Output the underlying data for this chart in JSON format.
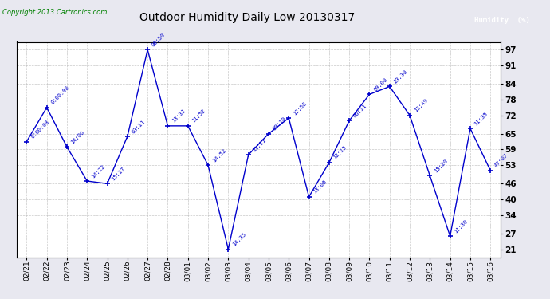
{
  "title": "Outdoor Humidity Daily Low 20130317",
  "copyright": "Copyright 2013 Cartronics.com",
  "legend_label": "Humidity  (%)",
  "x_labels": [
    "02/21",
    "02/22",
    "02/23",
    "02/24",
    "02/25",
    "02/26",
    "02/27",
    "02/28",
    "03/01",
    "03/02",
    "03/03",
    "03/04",
    "03/05",
    "03/06",
    "03/07",
    "03/08",
    "03/09",
    "03/10",
    "03/11",
    "03/12",
    "03/13",
    "03/14",
    "03/15",
    "03/16"
  ],
  "y_values": [
    62,
    75,
    60,
    47,
    46,
    64,
    97,
    68,
    68,
    53,
    21,
    57,
    65,
    71,
    41,
    54,
    70,
    80,
    83,
    72,
    49,
    26,
    67,
    51
  ],
  "time_labels": [
    "0:00:08",
    "0:00:00",
    "14:06",
    "14:22",
    "15:17",
    "63:11",
    "06:50",
    "13:31",
    "21:52",
    "14:52",
    "14:35",
    "11:11",
    "80:10",
    "12:58",
    "13:06",
    "12:15",
    "06:11",
    "00:00",
    "23:30",
    "13:49",
    "15:20",
    "11:30",
    "11:35",
    "47:07"
  ],
  "y_ticks": [
    21,
    27,
    34,
    40,
    46,
    53,
    59,
    65,
    72,
    78,
    84,
    91,
    97
  ],
  "y_min": 18,
  "y_max": 100,
  "line_color": "#0000cc",
  "marker_color": "#0000cc",
  "bg_color": "#e8e8f0",
  "plot_bg": "#ffffff",
  "grid_color": "#bbbbbb",
  "title_color": "#000000",
  "label_color": "#0000cc",
  "copyright_color": "#008000",
  "legend_bg": "#0000aa",
  "legend_text": "#ffffff"
}
